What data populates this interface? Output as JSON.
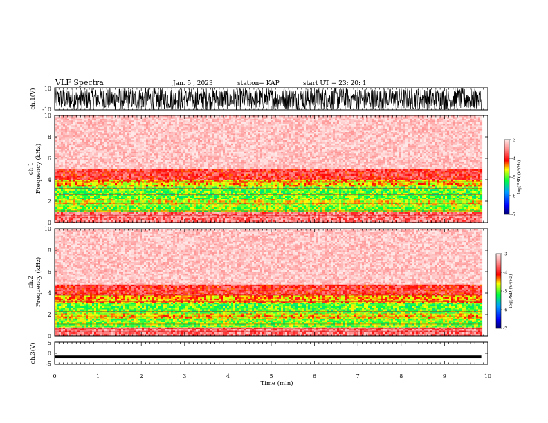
{
  "header": {
    "title": "VLF Spectra",
    "date": "Jan. 5 , 2023",
    "station": "station= KAP",
    "start": "start UT = 23: 20: 1"
  },
  "chart_data": [
    {
      "type": "line",
      "name": "ch1-waveform",
      "ylabel": "ch.1(V)",
      "ylim": [
        -10,
        10
      ],
      "y_ticks": [
        "10",
        "-10"
      ],
      "xlim": [
        0,
        10
      ],
      "x_end": 9.85,
      "note_values": "dense noise filling nearly full range"
    },
    {
      "type": "heatmap",
      "name": "ch1-spectrogram",
      "ylabel": "ch.1\nFrequency (kHz)",
      "ylabel_lines": [
        "ch.1",
        "Frequency (kHz)"
      ],
      "ylim": [
        0,
        10
      ],
      "y_ticks": [
        "0",
        "2",
        "4",
        "6",
        "8",
        "10"
      ],
      "xlim": [
        0,
        10
      ],
      "x_end": 9.85,
      "bands": [
        {
          "from": 0,
          "to": 1.0,
          "level": -3.6
        },
        {
          "from": 1.0,
          "to": 1.6,
          "level": -4.9
        },
        {
          "from": 1.6,
          "to": 2.2,
          "level": -4.7
        },
        {
          "from": 2.2,
          "to": 3.4,
          "level": -5.0
        },
        {
          "from": 3.4,
          "to": 4.0,
          "level": -4.5
        },
        {
          "from": 4.0,
          "to": 5.0,
          "level": -3.9
        },
        {
          "from": 5.0,
          "to": 10,
          "level": -3.2
        }
      ],
      "colorbar": {
        "label": "log(PSD)(V²/Hz)",
        "min": -7,
        "max": -3,
        "ticks": [
          "-3",
          "-4",
          "-5",
          "-6",
          "-7"
        ]
      }
    },
    {
      "type": "heatmap",
      "name": "ch2-spectrogram",
      "ylabel": "ch.2\nFrequency (kHz)",
      "ylabel_lines": [
        "ch.2",
        "Frequency (kHz)"
      ],
      "ylim": [
        0,
        10
      ],
      "y_ticks": [
        "0",
        "2",
        "4",
        "6",
        "8",
        "10"
      ],
      "xlim": [
        0,
        10
      ],
      "x_end": 9.85,
      "bands": [
        {
          "from": 0,
          "to": 0.8,
          "level": -3.6
        },
        {
          "from": 0.8,
          "to": 1.6,
          "level": -4.9
        },
        {
          "from": 1.6,
          "to": 2.1,
          "level": -4.6
        },
        {
          "from": 2.1,
          "to": 3.1,
          "level": -5.0
        },
        {
          "from": 3.1,
          "to": 3.8,
          "level": -4.4
        },
        {
          "from": 3.8,
          "to": 4.8,
          "level": -3.9
        },
        {
          "from": 4.8,
          "to": 10,
          "level": -3.2
        }
      ],
      "colorbar": {
        "label": "log(PSD)(V²/Hz)",
        "min": -7,
        "max": -3,
        "ticks": [
          "-3",
          "-4",
          "-5",
          "-6",
          "-7"
        ]
      }
    },
    {
      "type": "line",
      "name": "ch3-waveform",
      "ylabel": "ch.3(V)",
      "ylim": [
        -5,
        5
      ],
      "y_ticks": [
        "5",
        "0",
        "-5"
      ],
      "xlim": [
        0,
        10
      ],
      "x_end": 9.85,
      "level": -1.6,
      "spread": 0.6
    }
  ],
  "x_axis": {
    "label": "Time (min)",
    "ticks": [
      "0",
      "1",
      "2",
      "3",
      "4",
      "5",
      "6",
      "7",
      "8",
      "9",
      "10"
    ]
  },
  "colors": {
    "line": "#000000",
    "background": "#ffffff"
  }
}
